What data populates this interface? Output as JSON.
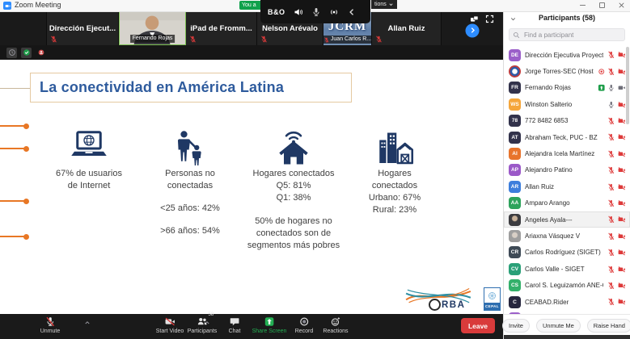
{
  "titlebar": {
    "app_title": "Zoom Meeting",
    "share_pill": "You a",
    "osd_brand": "B&O",
    "options_chip": "tions"
  },
  "video_strip": {
    "tiles": [
      {
        "type": "empty",
        "name": ""
      },
      {
        "type": "name",
        "name": "Dirección  Ejecut...",
        "mic": "muted"
      },
      {
        "type": "video",
        "name": "Fernando Rojas",
        "mic": "on",
        "speaking": true
      },
      {
        "type": "name",
        "name": "iPad de Fromm...",
        "mic": "muted"
      },
      {
        "type": "name",
        "name": "Nelson Arévalo",
        "mic": "muted"
      },
      {
        "type": "image",
        "name": "JCRM",
        "label": "Juan Carlos R...",
        "mic": "muted"
      },
      {
        "type": "name",
        "name": "Allan Ruiz",
        "mic": "muted"
      },
      {
        "type": "more",
        "name": ""
      }
    ]
  },
  "slide": {
    "title": "La conectividad en América Latina",
    "columns": [
      {
        "icon": "laptop-globe-icon",
        "lines": [
          "67% de usuarios",
          "de Internet"
        ]
      },
      {
        "icon": "adult-child-icon",
        "lines": [
          "Personas no",
          "conectadas"
        ],
        "stats": [
          "<25 años: 42%",
          ">66 años: 54%"
        ]
      },
      {
        "icon": "connected-home-icon",
        "lines": [
          "Hogares conectados",
          "Q5: 81%",
          "Q1: 38%"
        ],
        "note": "50% de hogares no conectados son de segmentos más pobres"
      },
      {
        "icon": "urban-rural-icon",
        "lines": [
          "Hogares",
          "conectados",
          "Urbano: 67%",
          "Rural: 23%"
        ]
      }
    ],
    "logos": {
      "orba": "ORBA",
      "cepal": "CEPAL"
    }
  },
  "toolbar": {
    "left": [
      {
        "label": "Unmute",
        "icon": "mic-muted-icon",
        "caret": true
      },
      {
        "label": "Start Video",
        "icon": "video-off-icon",
        "caret": true
      }
    ],
    "center": [
      {
        "label": "Participants",
        "icon": "participants-icon",
        "badge": "58"
      },
      {
        "label": "Chat",
        "icon": "chat-icon"
      },
      {
        "label": "Share Screen",
        "icon": "share-screen-icon",
        "active": true
      },
      {
        "label": "Record",
        "icon": "record-icon"
      },
      {
        "label": "Reactions",
        "icon": "reactions-icon"
      }
    ],
    "leave_label": "Leave"
  },
  "participants_panel": {
    "header": "Participants (58)",
    "search_placeholder": "Find a participant",
    "items": [
      {
        "initials": "DE",
        "color": "#9B5FC9",
        "name": "Dirección Ejecutiva Proyecto... (Me)",
        "mic": "muted",
        "video": "off"
      },
      {
        "initials": "",
        "avatar": "photo-logo",
        "name": "Jorge Torres-SEC (Host)",
        "recording": true,
        "mic": "muted",
        "video": "off"
      },
      {
        "initials": "FR",
        "color": "#32324B",
        "name": "Fernando Rojas",
        "sharing": true,
        "mic": "on",
        "video": "on"
      },
      {
        "initials": "WS",
        "color": "#F5A63B",
        "name": "Winston Salterio",
        "mic": "on",
        "video": "off"
      },
      {
        "initials": "78",
        "color": "#32324B",
        "name": "772 8482 6853",
        "mic": "muted",
        "video": "off"
      },
      {
        "initials": "AT",
        "color": "#32324B",
        "name": "Abraham Teck, PUC - BZ",
        "mic": "muted",
        "video": "off"
      },
      {
        "initials": "AI",
        "color": "#E8742C",
        "name": "Alejandra Icela Martínez",
        "mic": "muted",
        "video": "off"
      },
      {
        "initials": "AP",
        "color": "#9B59C8",
        "name": "Alejandro Patino",
        "mic": "muted",
        "video": "off"
      },
      {
        "initials": "AR",
        "color": "#3D7EDC",
        "name": "Allan Ruiz",
        "mic": "muted",
        "video": "off"
      },
      {
        "initials": "AA",
        "color": "#2EA35C",
        "name": "Amparo Arango",
        "mic": "muted",
        "video": "off"
      },
      {
        "initials": "",
        "avatar": "photo-dark",
        "name": "Angeles Ayala---",
        "mic": "muted",
        "video": "off",
        "highlight": true
      },
      {
        "initials": "",
        "avatar": "photo-light",
        "name": "Ariaxna Vásquez V",
        "mic": "muted",
        "video": "off"
      },
      {
        "initials": "CR",
        "color": "#3E4A56",
        "name": "Carlos Rodríguez (SIGET)",
        "mic": "muted",
        "video": "off"
      },
      {
        "initials": "CV",
        "color": "#2AA078",
        "name": "Carlos Valle - SIGET",
        "mic": "muted",
        "video": "off"
      },
      {
        "initials": "CS",
        "color": "#33B06A",
        "name": "Carol S. Leguizamón ANE-Colom...",
        "mic": "muted",
        "video": "off"
      },
      {
        "initials": "C",
        "color": "#26263E",
        "name": "CEABAD.Rider",
        "mic": "muted",
        "video": "off"
      },
      {
        "initials": "",
        "color": "#9B5FC9",
        "name": "",
        "partial": true
      }
    ],
    "footer_buttons": [
      "Invite",
      "Unmute Me",
      "Raise Hand"
    ]
  },
  "colors": {
    "accent_green": "#23B053",
    "leave_red": "#D93B3B",
    "muted_red": "#DE3B3B",
    "slide_blue": "#2E5B9D",
    "slide_orange": "#E87725",
    "icon_navy": "#1F3864"
  }
}
